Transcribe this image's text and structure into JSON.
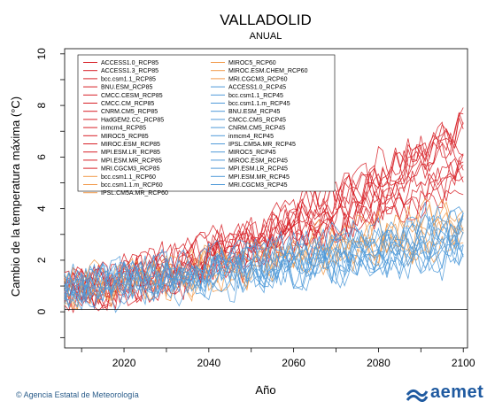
{
  "chart_data": {
    "type": "line",
    "title": "VALLADOLID",
    "subtitle": "ANUAL",
    "xlabel": "Año",
    "ylabel": "Cambio de la temperatura máxima (°C)",
    "xlim": [
      2006,
      2101
    ],
    "ylim": [
      -1.4,
      10.2
    ],
    "xticks": [
      2020,
      2040,
      2060,
      2080,
      2100
    ],
    "yticks": [
      0,
      2,
      4,
      6,
      8,
      10
    ],
    "grid": false,
    "legend_position": "top-left",
    "x_start": 2006,
    "x_end": 2100,
    "scenarios": {
      "rcp85": {
        "color": "#d72027",
        "start": 0.9,
        "end": 6.5
      },
      "rcp60": {
        "color": "#f29a4a",
        "start": 0.9,
        "end": 3.6
      },
      "rcp45": {
        "color": "#4f9ad9",
        "start": 0.9,
        "end": 2.9
      }
    },
    "series": [
      {
        "name": "ACCESS1.0_RCP85",
        "scenario": "rcp85"
      },
      {
        "name": "ACCESS1.3_RCP85",
        "scenario": "rcp85"
      },
      {
        "name": "bcc.csm1.1_RCP85",
        "scenario": "rcp85"
      },
      {
        "name": "BNU.ESM_RCP85",
        "scenario": "rcp85"
      },
      {
        "name": "CMCC.CESM_RCP85",
        "scenario": "rcp85"
      },
      {
        "name": "CMCC.CM_RCP85",
        "scenario": "rcp85"
      },
      {
        "name": "CNRM.CM5_RCP85",
        "scenario": "rcp85"
      },
      {
        "name": "HadGEM2.CC_RCP85",
        "scenario": "rcp85"
      },
      {
        "name": "inmcm4_RCP85",
        "scenario": "rcp85"
      },
      {
        "name": "MIROC5_RCP85",
        "scenario": "rcp85"
      },
      {
        "name": "MIROC.ESM_RCP85",
        "scenario": "rcp85"
      },
      {
        "name": "MPI.ESM.LR_RCP85",
        "scenario": "rcp85"
      },
      {
        "name": "MPI.ESM.MR_RCP85",
        "scenario": "rcp85"
      },
      {
        "name": "MRI.CGCM3_RCP85",
        "scenario": "rcp85"
      },
      {
        "name": "bcc.csm1.1_RCP60",
        "scenario": "rcp60"
      },
      {
        "name": "bcc.csm1.1.m_RCP60",
        "scenario": "rcp60"
      },
      {
        "name": "IPSL.CM5A.MR_RCP60",
        "scenario": "rcp60"
      },
      {
        "name": "MIROC5_RCP60",
        "scenario": "rcp60"
      },
      {
        "name": "MIROC.ESM.CHEM_RCP60",
        "scenario": "rcp60"
      },
      {
        "name": "MRI.CGCM3_RCP60",
        "scenario": "rcp60"
      },
      {
        "name": "ACCESS1.0_RCP45",
        "scenario": "rcp45"
      },
      {
        "name": "bcc.csm1.1_RCP45",
        "scenario": "rcp45"
      },
      {
        "name": "bcc.csm1.1.m_RCP45",
        "scenario": "rcp45"
      },
      {
        "name": "BNU.ESM_RCP45",
        "scenario": "rcp45"
      },
      {
        "name": "CMCC.CMS_RCP45",
        "scenario": "rcp45"
      },
      {
        "name": "CNRM.CM5_RCP45",
        "scenario": "rcp45"
      },
      {
        "name": "inmcm4_RCP45",
        "scenario": "rcp45"
      },
      {
        "name": "IPSL.CM5A.MR_RCP45",
        "scenario": "rcp45"
      },
      {
        "name": "MIROC5_RCP45",
        "scenario": "rcp45"
      },
      {
        "name": "MIROC.ESM_RCP45",
        "scenario": "rcp45"
      },
      {
        "name": "MPI.ESM.LR_RCP45",
        "scenario": "rcp45"
      },
      {
        "name": "MPI.ESM.MR_RCP45",
        "scenario": "rcp45"
      },
      {
        "name": "MRI.CGCM3_RCP45",
        "scenario": "rcp45"
      }
    ]
  },
  "footer": {
    "credit": "© Agencia Estatal de Meteorología",
    "logo_text": "aemet",
    "logo_color": "#1f5aa0"
  }
}
